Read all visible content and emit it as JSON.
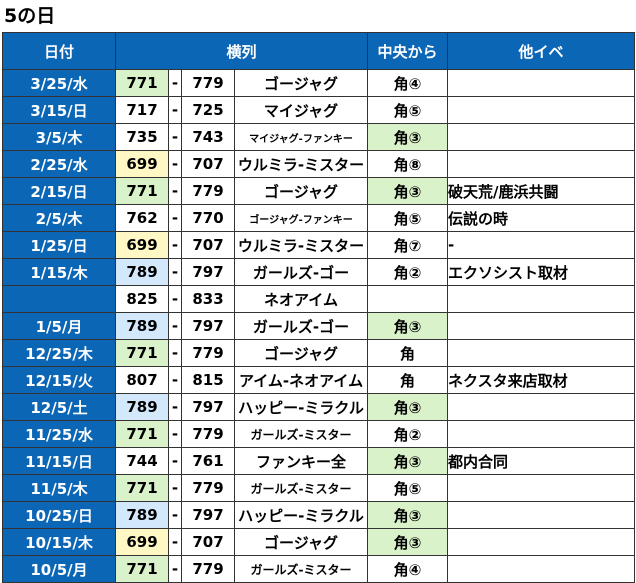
{
  "title": "5の日",
  "headers": {
    "date": "日付",
    "range": "横列",
    "center": "中央から",
    "other": "他イベ"
  },
  "dash": "-",
  "colors": {
    "header_bg": "#0b66b6",
    "green": "#d9f2c9",
    "blue": "#d3e8fa",
    "yellow": "#fff7c4"
  },
  "rows": [
    {
      "date": "3/25/水",
      "start": "771",
      "start_color": "g",
      "end": "779",
      "model": "ゴージャグ",
      "model_size": "l",
      "center": "角④",
      "center_hl": false,
      "other": ""
    },
    {
      "date": "3/15/日",
      "start": "717",
      "start_color": "",
      "end": "725",
      "model": "マイジャグ",
      "model_size": "l",
      "center": "角⑤",
      "center_hl": false,
      "other": ""
    },
    {
      "date": "3/5/木",
      "start": "735",
      "start_color": "",
      "end": "743",
      "model": "マイジャグ-ファンキー",
      "model_size": "s",
      "center": "角③",
      "center_hl": true,
      "other": ""
    },
    {
      "date": "2/25/水",
      "start": "699",
      "start_color": "y",
      "end": "707",
      "model": "ウルミラ-ミスター",
      "model_size": "l",
      "center": "角⑧",
      "center_hl": false,
      "other": ""
    },
    {
      "date": "2/15/日",
      "start": "771",
      "start_color": "g",
      "end": "779",
      "model": "ゴージャグ",
      "model_size": "l",
      "center": "角③",
      "center_hl": true,
      "other": "破天荒/鹿浜共闘"
    },
    {
      "date": "2/5/木",
      "start": "762",
      "start_color": "",
      "end": "770",
      "model": "ゴージャグ-ファンキー",
      "model_size": "s",
      "center": "角⑤",
      "center_hl": false,
      "other": "伝説の時"
    },
    {
      "date": "1/25/日",
      "start": "699",
      "start_color": "y",
      "end": "707",
      "model": "ウルミラ-ミスター",
      "model_size": "l",
      "center": "角⑦",
      "center_hl": false,
      "other": "-"
    },
    {
      "date": "1/15/木",
      "start": "789",
      "start_color": "b",
      "end": "797",
      "model": "ガールズ-ゴー",
      "model_size": "l",
      "center": "角②",
      "center_hl": false,
      "other": "エクソシスト取材"
    },
    {
      "date": "",
      "start": "825",
      "start_color": "",
      "end": "833",
      "model": "ネオアイム",
      "model_size": "l",
      "center": "",
      "center_hl": false,
      "other": ""
    },
    {
      "date": "1/5/月",
      "start": "789",
      "start_color": "b",
      "end": "797",
      "model": "ガールズ-ゴー",
      "model_size": "l",
      "center": "角③",
      "center_hl": true,
      "other": ""
    },
    {
      "date": "12/25/木",
      "start": "771",
      "start_color": "g",
      "end": "779",
      "model": "ゴージャグ",
      "model_size": "l",
      "center": "角",
      "center_hl": false,
      "other": ""
    },
    {
      "date": "12/15/火",
      "start": "807",
      "start_color": "",
      "end": "815",
      "model": "アイム-ネオアイム",
      "model_size": "l",
      "center": "角",
      "center_hl": false,
      "other": "ネクスタ来店取材"
    },
    {
      "date": "12/5/土",
      "start": "789",
      "start_color": "b",
      "end": "797",
      "model": "ハッピー-ミラクル",
      "model_size": "l",
      "center": "角③",
      "center_hl": true,
      "other": ""
    },
    {
      "date": "11/25/水",
      "start": "771",
      "start_color": "g",
      "end": "779",
      "model": "ガールズ-ミスター",
      "model_size": "m",
      "center": "角②",
      "center_hl": false,
      "other": ""
    },
    {
      "date": "11/15/日",
      "start": "744",
      "start_color": "",
      "end": "761",
      "model": "ファンキー全",
      "model_size": "l",
      "center": "角③",
      "center_hl": true,
      "other": "都内合同"
    },
    {
      "date": "11/5/木",
      "start": "771",
      "start_color": "g",
      "end": "779",
      "model": "ガールズ-ミスター",
      "model_size": "m",
      "center": "角⑤",
      "center_hl": false,
      "other": ""
    },
    {
      "date": "10/25/日",
      "start": "789",
      "start_color": "b",
      "end": "797",
      "model": "ハッピー-ミラクル",
      "model_size": "l",
      "center": "角③",
      "center_hl": true,
      "other": ""
    },
    {
      "date": "10/15/木",
      "start": "699",
      "start_color": "y",
      "end": "707",
      "model": "ゴージャグ",
      "model_size": "l",
      "center": "角③",
      "center_hl": true,
      "other": ""
    },
    {
      "date": "10/5/月",
      "start": "771",
      "start_color": "g",
      "end": "779",
      "model": "ガールズ-ミスター",
      "model_size": "m",
      "center": "角④",
      "center_hl": false,
      "other": ""
    }
  ]
}
